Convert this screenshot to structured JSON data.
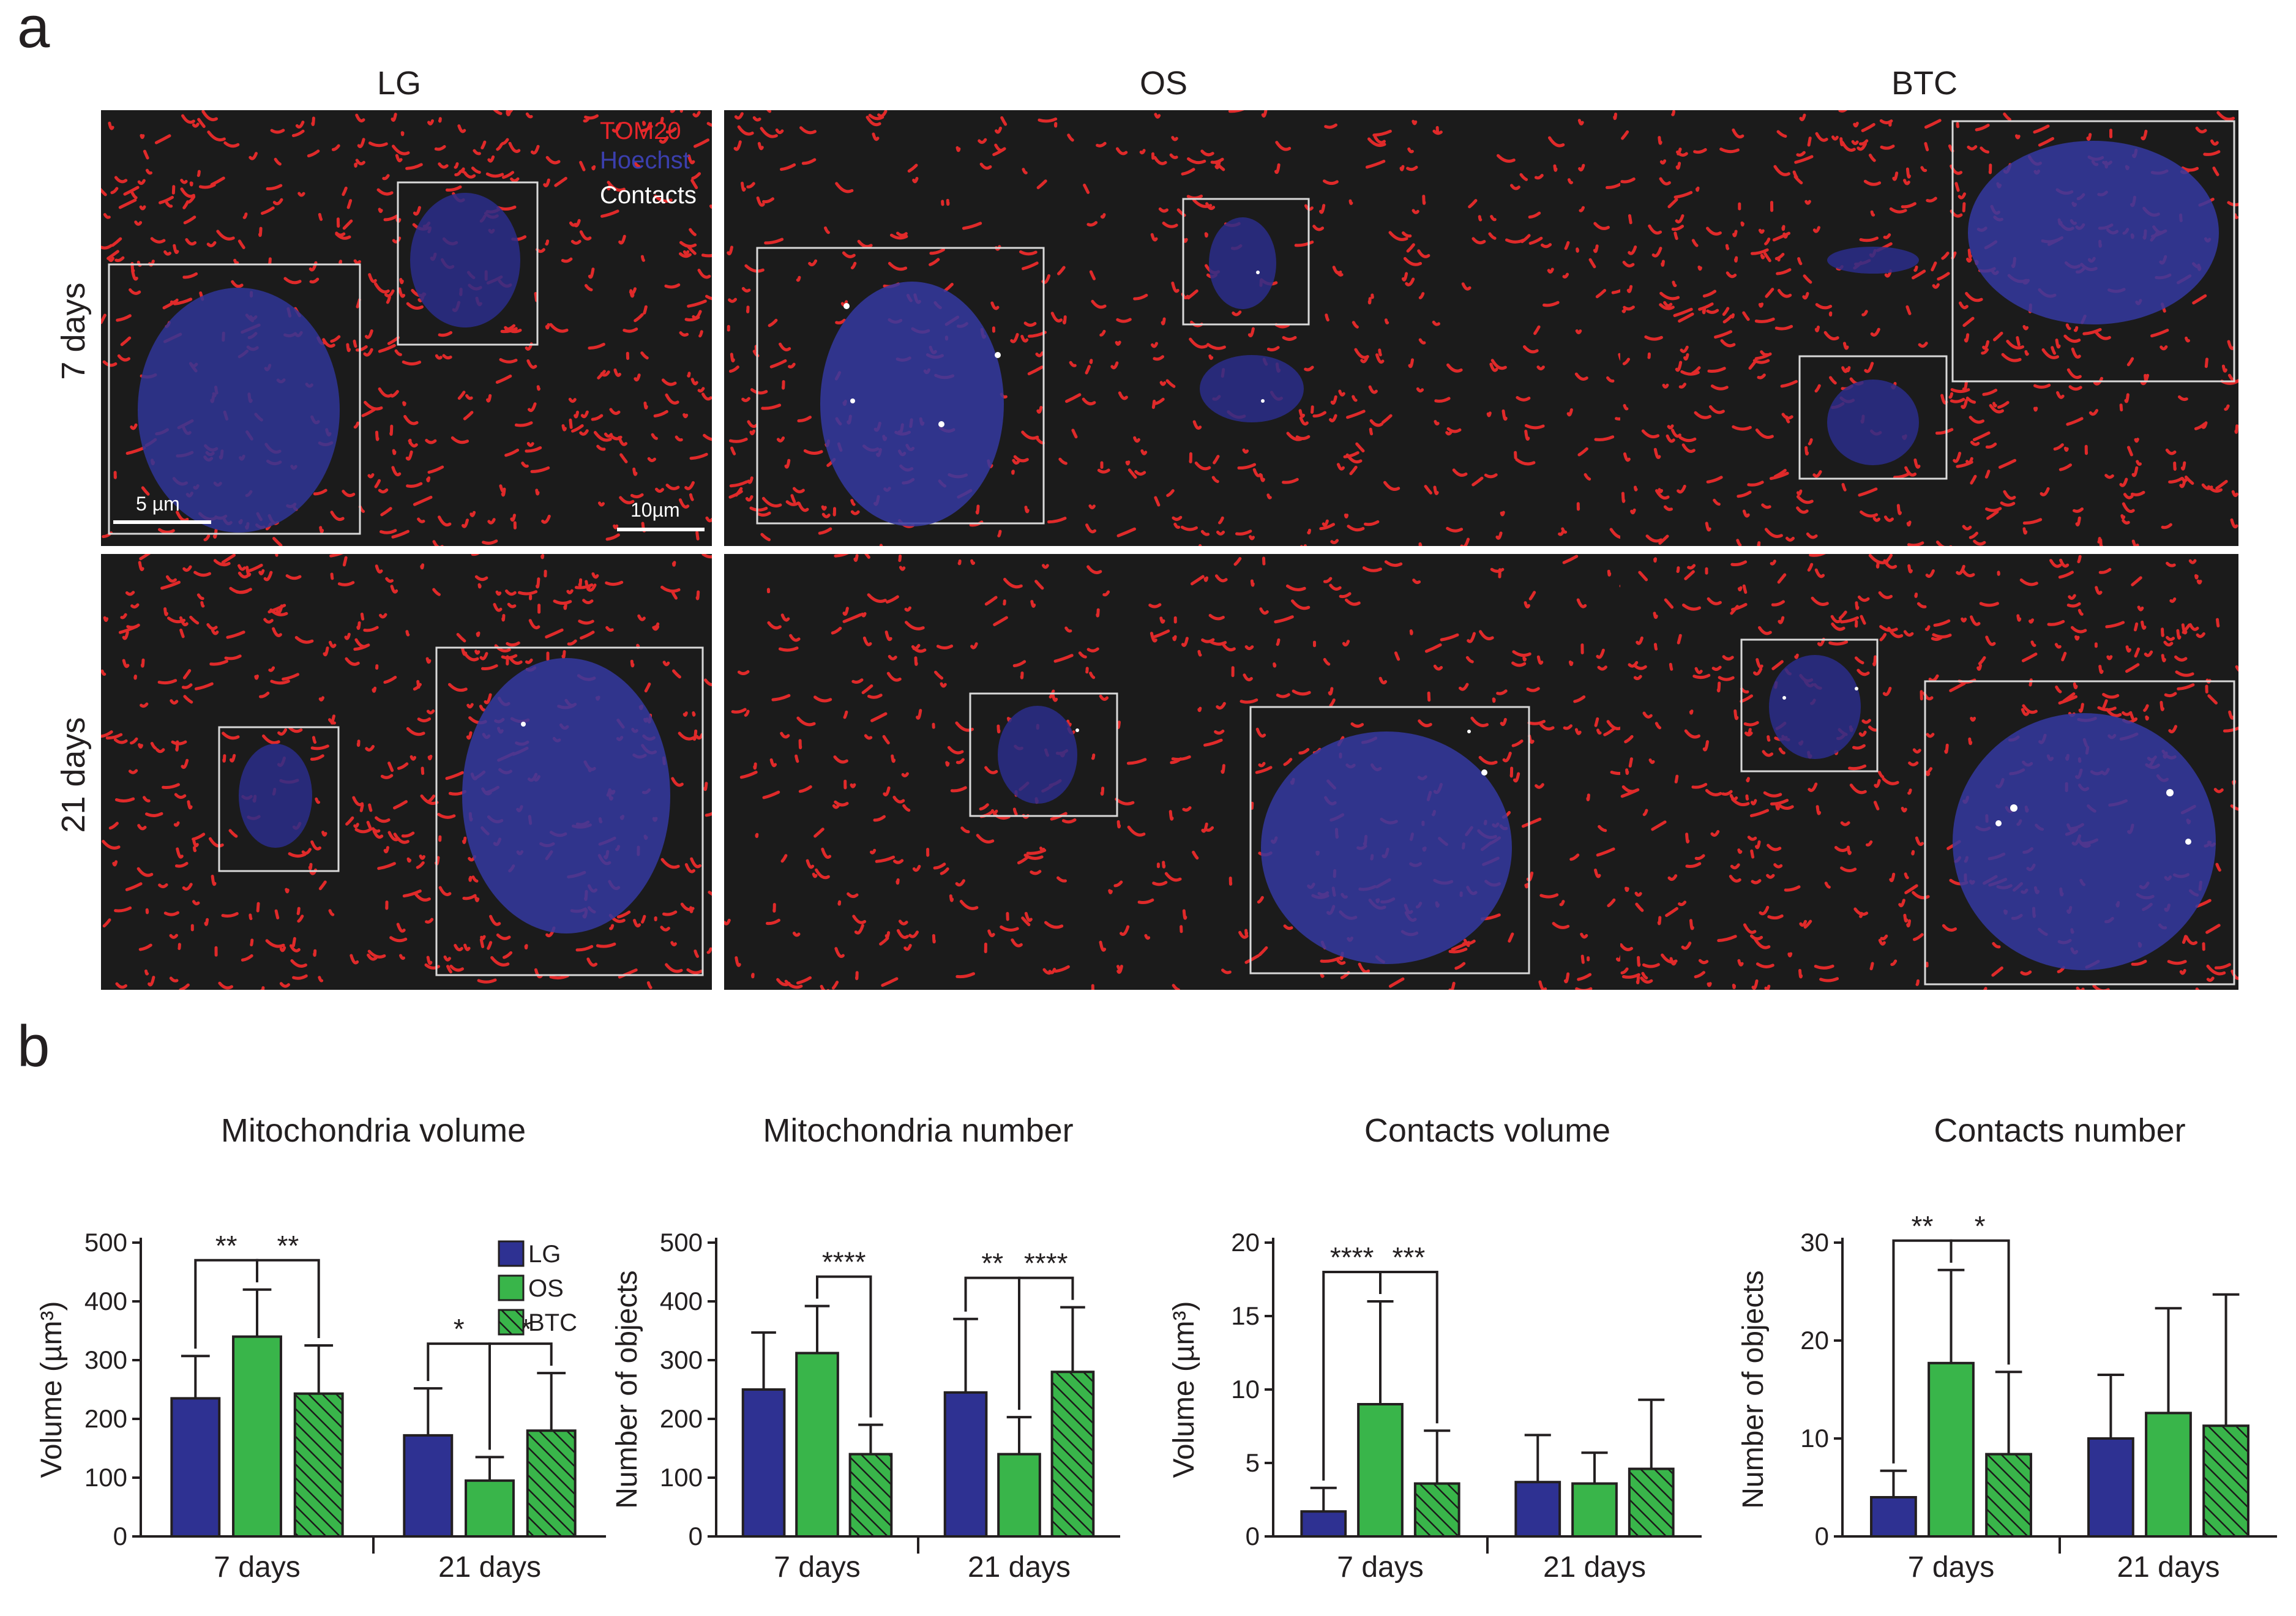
{
  "panel_a": {
    "label": "a",
    "columns": [
      "LG",
      "OS",
      "BTC"
    ],
    "rows": [
      "7 days",
      "21 days"
    ],
    "legend": [
      {
        "text": "TOM20",
        "color": "#e8262a"
      },
      {
        "text": "Hoechst",
        "color": "#3b3fae"
      },
      {
        "text": "Contacts",
        "color": "#ffffff"
      }
    ],
    "scalebars": [
      "5 µm",
      "10µm"
    ]
  },
  "panel_b": {
    "label": "b",
    "legend": [
      "LG",
      "OS",
      "BTC"
    ],
    "colors": {
      "LG": "#2e3192",
      "OS": "#39b54a",
      "BTC": "#39b54a"
    }
  },
  "chart_data": [
    {
      "type": "bar",
      "title": "Mitochondria volume",
      "ylabel": "Volume (µm³)",
      "categories": [
        "7 days",
        "21 days"
      ],
      "ylim": [
        0,
        500
      ],
      "yticks": [
        "0",
        "100",
        "200",
        "300",
        "400",
        "500"
      ],
      "series": [
        {
          "name": "LG",
          "values": [
            235,
            172
          ],
          "errors": [
            72,
            80
          ]
        },
        {
          "name": "OS",
          "values": [
            340,
            95
          ],
          "errors": [
            80,
            40
          ]
        },
        {
          "name": "BTC",
          "values": [
            243,
            180
          ],
          "errors": [
            82,
            98
          ]
        }
      ],
      "significance": [
        {
          "group": 0,
          "from": 0,
          "to": 1,
          "label": "**"
        },
        {
          "group": 0,
          "from": 1,
          "to": 2,
          "label": "**"
        },
        {
          "group": 1,
          "from": 0,
          "to": 1,
          "label": "*"
        },
        {
          "group": 1,
          "from": 1,
          "to": 2,
          "label": "**"
        }
      ],
      "legend": [
        "LG",
        "OS",
        "BTC"
      ]
    },
    {
      "type": "bar",
      "title": "Mitochondria number",
      "ylabel": "Number of objects",
      "categories": [
        "7 days",
        "21 days"
      ],
      "ylim": [
        0,
        500
      ],
      "yticks": [
        "0",
        "100",
        "200",
        "300",
        "400",
        "500"
      ],
      "series": [
        {
          "name": "LG",
          "values": [
            250,
            245
          ],
          "errors": [
            97,
            125
          ]
        },
        {
          "name": "OS",
          "values": [
            312,
            140
          ],
          "errors": [
            80,
            63
          ]
        },
        {
          "name": "BTC",
          "values": [
            140,
            280
          ],
          "errors": [
            50,
            110
          ]
        }
      ],
      "significance": [
        {
          "group": 0,
          "from": 1,
          "to": 2,
          "label": "****"
        },
        {
          "group": 1,
          "from": 0,
          "to": 1,
          "label": "**"
        },
        {
          "group": 1,
          "from": 1,
          "to": 2,
          "label": "****"
        }
      ]
    },
    {
      "type": "bar",
      "title": "Contacts volume",
      "ylabel": "Volume (µm³)",
      "categories": [
        "7 days",
        "21 days"
      ],
      "ylim": [
        0,
        20
      ],
      "yticks": [
        "0",
        "5",
        "10",
        "15",
        "20"
      ],
      "series": [
        {
          "name": "LG",
          "values": [
            1.7,
            3.7
          ],
          "errors": [
            1.6,
            3.2
          ]
        },
        {
          "name": "OS",
          "values": [
            9.0,
            3.6
          ],
          "errors": [
            7.0,
            2.1
          ]
        },
        {
          "name": "BTC",
          "values": [
            3.6,
            4.6
          ],
          "errors": [
            3.6,
            4.7
          ]
        }
      ],
      "significance": [
        {
          "group": 0,
          "from": 0,
          "to": 1,
          "label": "****"
        },
        {
          "group": 0,
          "from": 1,
          "to": 2,
          "label": "***"
        }
      ]
    },
    {
      "type": "bar",
      "title": "Contacts number",
      "ylabel": "Number of objects",
      "categories": [
        "7 days",
        "21 days"
      ],
      "ylim": [
        0,
        30
      ],
      "yticks": [
        "0",
        "10",
        "20",
        "30"
      ],
      "series": [
        {
          "name": "LG",
          "values": [
            4.0,
            10.0
          ],
          "errors": [
            2.7,
            6.5
          ]
        },
        {
          "name": "OS",
          "values": [
            17.7,
            12.6
          ],
          "errors": [
            9.5,
            10.7
          ]
        },
        {
          "name": "BTC",
          "values": [
            8.4,
            11.3
          ],
          "errors": [
            8.4,
            13.4
          ]
        }
      ],
      "significance": [
        {
          "group": 0,
          "from": 0,
          "to": 1,
          "label": "**"
        },
        {
          "group": 0,
          "from": 1,
          "to": 2,
          "label": "*"
        }
      ]
    }
  ]
}
